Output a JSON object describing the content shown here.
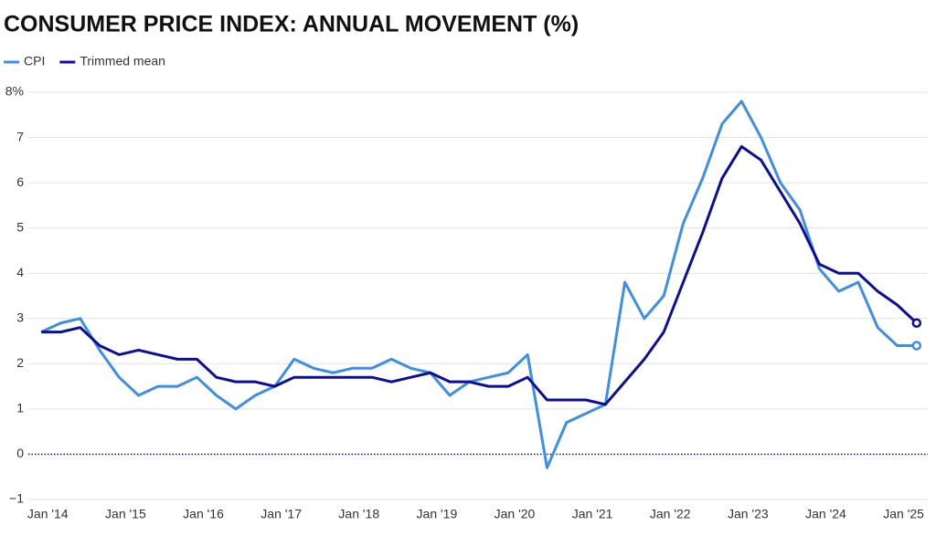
{
  "chart_data": {
    "type": "line",
    "title": "CONSUMER PRICE INDEX: ANNUAL MOVEMENT (%)",
    "x": [
      "2013-12",
      "2014-03",
      "2014-06",
      "2014-09",
      "2014-12",
      "2015-03",
      "2015-06",
      "2015-09",
      "2015-12",
      "2016-03",
      "2016-06",
      "2016-09",
      "2016-12",
      "2017-03",
      "2017-06",
      "2017-09",
      "2017-12",
      "2018-03",
      "2018-06",
      "2018-09",
      "2018-12",
      "2019-03",
      "2019-06",
      "2019-09",
      "2019-12",
      "2020-03",
      "2020-06",
      "2020-09",
      "2020-12",
      "2021-03",
      "2021-06",
      "2021-09",
      "2021-12",
      "2022-03",
      "2022-06",
      "2022-09",
      "2022-12",
      "2023-03",
      "2023-06",
      "2023-09",
      "2023-12",
      "2024-03",
      "2024-06",
      "2024-09",
      "2024-12",
      "2025-03"
    ],
    "series": [
      {
        "name": "CPI",
        "color": "#3d8fe6",
        "values": [
          2.7,
          2.9,
          3.0,
          2.3,
          1.7,
          1.3,
          1.5,
          1.5,
          1.7,
          1.3,
          1.0,
          1.3,
          1.5,
          2.1,
          1.9,
          1.8,
          1.9,
          1.9,
          2.1,
          1.9,
          1.8,
          1.3,
          1.6,
          1.7,
          1.8,
          2.2,
          -0.3,
          0.7,
          0.9,
          1.1,
          3.8,
          3.0,
          3.5,
          5.1,
          6.1,
          7.3,
          7.8,
          7.0,
          6.0,
          5.4,
          4.1,
          3.6,
          3.8,
          2.8,
          2.4,
          2.4
        ]
      },
      {
        "name": "Trimmed mean",
        "color": "#0d0d9c",
        "values": [
          2.7,
          2.7,
          2.8,
          2.4,
          2.2,
          2.3,
          2.2,
          2.1,
          2.1,
          1.7,
          1.6,
          1.6,
          1.5,
          1.7,
          1.7,
          1.7,
          1.7,
          1.7,
          1.6,
          1.7,
          1.8,
          1.6,
          1.6,
          1.5,
          1.5,
          1.7,
          1.2,
          1.2,
          1.2,
          1.1,
          1.6,
          2.1,
          2.7,
          3.8,
          4.9,
          6.1,
          6.8,
          6.5,
          5.8,
          5.1,
          4.2,
          4.0,
          4.0,
          3.6,
          3.3,
          2.9
        ]
      }
    ],
    "xlim": [
      "2013-10",
      "2025-05"
    ],
    "xticks": [
      {
        "value": "2014-01",
        "label": "Jan '14"
      },
      {
        "value": "2015-01",
        "label": "Jan '15"
      },
      {
        "value": "2016-01",
        "label": "Jan '16"
      },
      {
        "value": "2017-01",
        "label": "Jan '17"
      },
      {
        "value": "2018-01",
        "label": "Jan '18"
      },
      {
        "value": "2019-01",
        "label": "Jan '19"
      },
      {
        "value": "2020-01",
        "label": "Jan '20"
      },
      {
        "value": "2021-01",
        "label": "Jan '21"
      },
      {
        "value": "2022-01",
        "label": "Jan '22"
      },
      {
        "value": "2023-01",
        "label": "Jan '23"
      },
      {
        "value": "2024-01",
        "label": "Jan '24"
      },
      {
        "value": "2025-01",
        "label": "Jan '25"
      }
    ],
    "ylim": [
      -1,
      8
    ],
    "yticks": [
      {
        "value": -1,
        "label": "−1"
      },
      0,
      1,
      2,
      3,
      4,
      5,
      6,
      7,
      {
        "value": 8,
        "label": "8%"
      }
    ],
    "grid": true,
    "legend": "top-left"
  }
}
